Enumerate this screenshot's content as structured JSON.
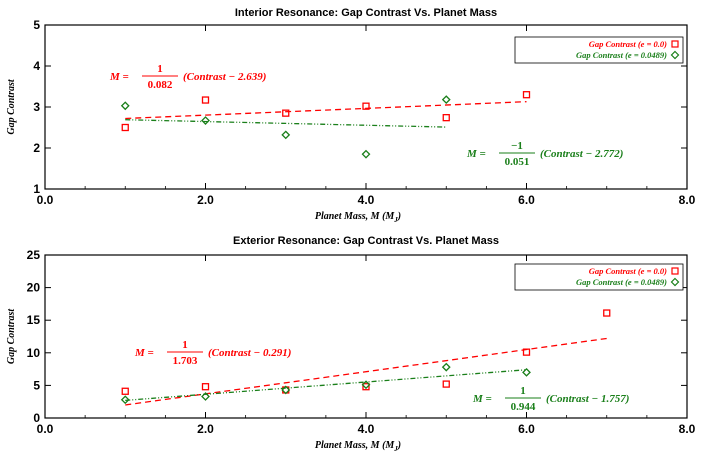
{
  "colors": {
    "red": "#ff0000",
    "green": "#1a7f1a"
  },
  "chart_data": [
    {
      "type": "scatter",
      "title": "Interior Resonance: Gap Contrast Vs. Planet Mass",
      "xlabel": "Planet Mass, M (M",
      "xlabel_sub": "J",
      "ylabel": "Gap Contrast",
      "xlim": [
        0,
        8
      ],
      "ylim": [
        1,
        5
      ],
      "xticks": [
        "0.0",
        "2.0",
        "4.0",
        "6.0",
        "8.0"
      ],
      "yticks": [
        "1",
        "2",
        "3",
        "4",
        "5"
      ],
      "legend": [
        "Gap Contrast (e = 0.0)",
        "Gap Contrast (e = 0.0489)"
      ],
      "series": [
        {
          "name": "Gap Contrast (e = 0.0)",
          "marker": "square",
          "color": "red",
          "x": [
            1,
            2,
            3,
            4,
            5,
            6
          ],
          "y": [
            2.5,
            3.17,
            2.85,
            3.02,
            2.74,
            3.3
          ],
          "fit_x": [
            1,
            6
          ],
          "fit_y": [
            2.72,
            3.13
          ]
        },
        {
          "name": "Gap Contrast (e = 0.0489)",
          "marker": "diamond",
          "color": "green",
          "x": [
            1,
            2,
            3,
            4,
            5
          ],
          "y": [
            3.03,
            2.67,
            2.32,
            1.85,
            3.18
          ],
          "fit_x": [
            1,
            5
          ],
          "fit_y": [
            2.69,
            2.51
          ]
        }
      ],
      "equations": [
        {
          "lhs": "M =",
          "num": "1",
          "den": "0.082",
          "rhs": "(Contrast − 2.639)",
          "color": "red"
        },
        {
          "lhs": "M =",
          "num": "−1",
          "den": "0.051",
          "rhs": "(Contrast − 2.772)",
          "color": "green"
        }
      ]
    },
    {
      "type": "scatter",
      "title": "Exterior Resonance: Gap Contrast Vs. Planet Mass",
      "xlabel": "Planet Mass, M (M",
      "xlabel_sub": "J",
      "ylabel": "Gap Contrast",
      "xlim": [
        0,
        8
      ],
      "ylim": [
        0,
        25
      ],
      "xticks": [
        "0.0",
        "2.0",
        "4.0",
        "6.0",
        "8.0"
      ],
      "yticks": [
        "0",
        "5",
        "10",
        "15",
        "20",
        "25"
      ],
      "legend": [
        "Gap Contrast (e = 0.0)",
        "Gap Contrast (e = 0.0489)"
      ],
      "series": [
        {
          "name": "Gap Contrast (e = 0.0)",
          "marker": "square",
          "color": "red",
          "x": [
            1,
            2,
            3,
            4,
            5,
            6,
            7
          ],
          "y": [
            4.1,
            4.8,
            4.3,
            4.8,
            5.2,
            10.1,
            16.1
          ],
          "fit_x": [
            1,
            7
          ],
          "fit_y": [
            2.0,
            12.2
          ]
        },
        {
          "name": "Gap Contrast (e = 0.0489)",
          "marker": "diamond",
          "color": "green",
          "x": [
            1,
            2,
            3,
            4,
            5,
            6
          ],
          "y": [
            2.8,
            3.3,
            4.3,
            5.1,
            7.8,
            7.0
          ],
          "fit_x": [
            1,
            6
          ],
          "fit_y": [
            2.7,
            7.4
          ]
        }
      ],
      "equations": [
        {
          "lhs": "M =",
          "num": "1",
          "den": "1.703",
          "rhs": "(Contrast − 0.291)",
          "color": "red"
        },
        {
          "lhs": "M =",
          "num": "1",
          "den": "0.944",
          "rhs": "(Contrast − 1.757)",
          "color": "green"
        }
      ]
    }
  ]
}
